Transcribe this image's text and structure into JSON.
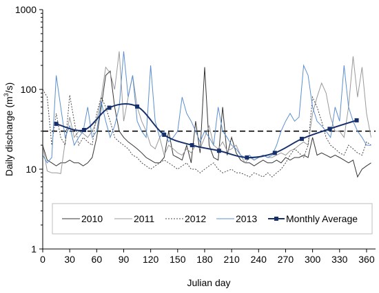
{
  "chart_data": {
    "type": "line",
    "xlabel": "Julian day",
    "ylabel_main": "Daily discharge (m",
    "ylabel_sup": "3",
    "ylabel_tail": "/s)",
    "yscale": "log",
    "xlim": [
      0,
      370
    ],
    "ylim": [
      1,
      1000
    ],
    "xticks": [
      "0",
      "30",
      "60",
      "90",
      "120",
      "150",
      "180",
      "210",
      "240",
      "270",
      "300",
      "330",
      "360"
    ],
    "yticks": [
      "1",
      "10",
      "100",
      "1000"
    ],
    "reference_line": {
      "value": 30,
      "style": "dashed",
      "color": "#000000"
    },
    "legend_position": "lower-right",
    "series": [
      {
        "name": "2010",
        "color": "#333333",
        "dash": "",
        "x": [
          0,
          5,
          10,
          15,
          20,
          25,
          30,
          35,
          40,
          45,
          50,
          55,
          60,
          65,
          70,
          75,
          80,
          85,
          90,
          95,
          100,
          105,
          110,
          115,
          120,
          125,
          130,
          135,
          140,
          145,
          150,
          155,
          160,
          165,
          170,
          175,
          180,
          185,
          190,
          195,
          200,
          205,
          210,
          215,
          220,
          225,
          230,
          235,
          240,
          245,
          250,
          255,
          260,
          265,
          270,
          275,
          280,
          285,
          290,
          295,
          300,
          305,
          310,
          315,
          320,
          325,
          330,
          335,
          340,
          345,
          350,
          355,
          360,
          365
        ],
        "y": [
          20,
          13,
          12,
          11,
          12,
          12,
          13,
          12,
          12,
          11,
          12,
          14,
          25,
          60,
          150,
          170,
          60,
          30,
          25,
          22,
          20,
          18,
          16,
          14,
          13,
          12,
          12,
          14,
          30,
          15,
          14,
          13,
          20,
          12,
          40,
          16,
          190,
          20,
          14,
          13,
          60,
          15,
          25,
          16,
          13,
          12,
          12,
          11,
          12,
          13,
          12,
          12,
          13,
          12,
          14,
          13,
          14,
          14,
          15,
          14,
          25,
          15,
          16,
          15,
          14,
          15,
          14,
          13,
          12,
          13,
          8,
          10,
          11,
          12
        ]
      },
      {
        "name": "2011",
        "color": "#999999",
        "dash": "",
        "x": [
          0,
          5,
          10,
          15,
          20,
          25,
          30,
          35,
          40,
          45,
          50,
          55,
          60,
          65,
          70,
          75,
          80,
          85,
          90,
          95,
          100,
          105,
          110,
          115,
          120,
          125,
          130,
          135,
          140,
          145,
          150,
          155,
          160,
          165,
          170,
          175,
          180,
          185,
          190,
          195,
          200,
          205,
          210,
          215,
          220,
          225,
          230,
          235,
          240,
          245,
          250,
          255,
          260,
          265,
          270,
          275,
          280,
          285,
          290,
          295,
          300,
          305,
          310,
          315,
          320,
          325,
          330,
          335,
          340,
          345,
          350,
          355,
          360,
          365
        ],
        "y": [
          20,
          9.5,
          9,
          9,
          8.8,
          22,
          45,
          25,
          30,
          28,
          25,
          30,
          40,
          80,
          190,
          160,
          100,
          300,
          40,
          80,
          150,
          60,
          40,
          30,
          20,
          18,
          25,
          15,
          20,
          18,
          16,
          15,
          18,
          16,
          20,
          18,
          25,
          35,
          20,
          18,
          22,
          17,
          18,
          20,
          15,
          12,
          14,
          13,
          14,
          15,
          14,
          14,
          15,
          16,
          15,
          17,
          18,
          20,
          22,
          20,
          50,
          80,
          120,
          90,
          45,
          30,
          30,
          25,
          60,
          260,
          80,
          190,
          50,
          25
        ]
      },
      {
        "name": "2012",
        "color": "#444444",
        "dash": "2,2",
        "x": [
          0,
          5,
          10,
          15,
          20,
          25,
          30,
          35,
          40,
          45,
          50,
          55,
          60,
          65,
          70,
          75,
          80,
          85,
          90,
          95,
          100,
          105,
          110,
          115,
          120,
          125,
          130,
          135,
          140,
          145,
          150,
          155,
          160,
          165,
          170,
          175,
          180,
          185,
          190,
          195,
          200,
          205,
          210,
          215,
          220,
          225,
          230,
          235,
          240,
          245,
          250,
          255,
          260,
          265,
          270,
          275,
          280,
          285,
          290,
          295,
          300,
          305,
          310,
          315,
          320,
          325,
          330,
          335,
          340,
          345,
          350,
          355,
          360,
          365
        ],
        "y": [
          100,
          80,
          20,
          50,
          25,
          20,
          85,
          40,
          20,
          25,
          22,
          20,
          50,
          80,
          60,
          40,
          25,
          22,
          20,
          18,
          15,
          14,
          12,
          11,
          10,
          11,
          12,
          13,
          12,
          11,
          10,
          11,
          12,
          10,
          10,
          9,
          10,
          11,
          12,
          10,
          9,
          9.5,
          10,
          9,
          9,
          8.5,
          8,
          9,
          8.5,
          8,
          9,
          8,
          9,
          10,
          12,
          15,
          18,
          16,
          14,
          20,
          80,
          60,
          40,
          25,
          20,
          18,
          16,
          15,
          20,
          18,
          16,
          15,
          22,
          20
        ]
      },
      {
        "name": "2013",
        "color": "#5b8fd0",
        "dash": "",
        "x": [
          0,
          5,
          10,
          15,
          20,
          25,
          30,
          35,
          40,
          45,
          50,
          55,
          60,
          65,
          70,
          75,
          80,
          85,
          90,
          95,
          100,
          105,
          110,
          115,
          120,
          125,
          130,
          135,
          140,
          145,
          150,
          155,
          160,
          165,
          170,
          175,
          180,
          185,
          190,
          195,
          200,
          205,
          210,
          215,
          220,
          225,
          230,
          235,
          240,
          245,
          250,
          255,
          260,
          265,
          270,
          275,
          280,
          285,
          290,
          295,
          300,
          305,
          310,
          315,
          320,
          325,
          330,
          335,
          340,
          345,
          350,
          355,
          360,
          365
        ],
        "y": [
          15,
          12,
          14,
          150,
          60,
          25,
          35,
          20,
          25,
          30,
          60,
          25,
          30,
          70,
          40,
          25,
          35,
          60,
          300,
          80,
          150,
          40,
          30,
          25,
          200,
          40,
          25,
          30,
          22,
          25,
          30,
          80,
          50,
          40,
          30,
          22,
          30,
          25,
          20,
          60,
          30,
          25,
          20,
          18,
          15,
          14,
          15,
          13,
          14,
          15,
          14,
          15,
          20,
          30,
          40,
          50,
          40,
          45,
          200,
          150,
          60,
          40,
          35,
          30,
          25,
          60,
          40,
          200,
          60,
          40,
          30,
          25,
          20,
          20
        ]
      },
      {
        "name": "Monthly Average",
        "color": "#17306b",
        "dash": "",
        "markers": true,
        "x": [
          15,
          46,
          74,
          105,
          135,
          166,
          196,
          227,
          258,
          288,
          319,
          349
        ],
        "y": [
          37,
          31,
          59,
          61,
          27,
          20,
          17,
          14,
          16,
          24,
          32,
          41
        ]
      }
    ]
  }
}
